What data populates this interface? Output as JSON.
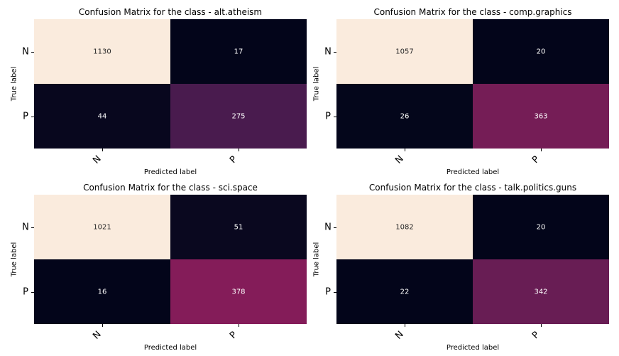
{
  "chart_data": [
    {
      "type": "heatmap",
      "title": "Confusion Matrix for the class - alt.atheism",
      "xlabel": "Predicted label",
      "ylabel": "True label",
      "x_categories": [
        "N",
        "P"
      ],
      "y_categories": [
        "N",
        "P"
      ],
      "values": [
        [
          1130,
          17
        ],
        [
          44,
          275
        ]
      ],
      "colormap": "rocket",
      "colorbar": false
    },
    {
      "type": "heatmap",
      "title": "Confusion Matrix for the class - comp.graphics",
      "xlabel": "Predicted label",
      "ylabel": "True label",
      "x_categories": [
        "N",
        "P"
      ],
      "y_categories": [
        "N",
        "P"
      ],
      "values": [
        [
          1057,
          20
        ],
        [
          26,
          363
        ]
      ],
      "colormap": "rocket",
      "colorbar": false
    },
    {
      "type": "heatmap",
      "title": "Confusion Matrix for the class - sci.space",
      "xlabel": "Predicted label",
      "ylabel": "True label",
      "x_categories": [
        "N",
        "P"
      ],
      "y_categories": [
        "N",
        "P"
      ],
      "values": [
        [
          1021,
          51
        ],
        [
          16,
          378
        ]
      ],
      "colormap": "rocket",
      "colorbar": false
    },
    {
      "type": "heatmap",
      "title": "Confusion Matrix for the class - talk.politics.guns",
      "xlabel": "Predicted label",
      "ylabel": "True label",
      "x_categories": [
        "N",
        "P"
      ],
      "y_categories": [
        "N",
        "P"
      ],
      "values": [
        [
          1082,
          20
        ],
        [
          22,
          342
        ]
      ],
      "colormap": "rocket",
      "colorbar": false
    }
  ]
}
